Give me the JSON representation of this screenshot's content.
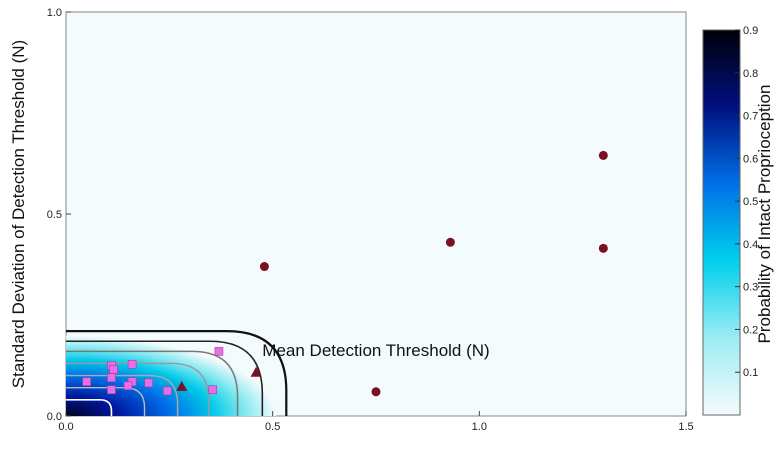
{
  "chart_data": {
    "type": "scatter",
    "xlabel": "Mean Detection Threshold (N)",
    "ylabel": "Standard Deviation of Detection Threshold (N)",
    "xlim": [
      0,
      1.5
    ],
    "ylim": [
      0,
      1.0
    ],
    "x_ticks": [
      "0.0",
      "0.5",
      "1.0",
      "1.5"
    ],
    "y_ticks": [
      "0.0",
      "0.5",
      "1.0"
    ],
    "background": "probability heatmap with contour lines",
    "colorbar": {
      "label": "Probability of Intact Proprioception",
      "range": [
        0.0,
        0.9
      ],
      "ticks": [
        "0.1",
        "0.2",
        "0.3",
        "0.4",
        "0.5",
        "0.6",
        "0.7",
        "0.8",
        "0.9"
      ],
      "colors": [
        "#f4fbfc",
        "#00e0f0",
        "#0060e8",
        "#000010"
      ]
    },
    "contour_levels": [
      0.1,
      0.3,
      0.5,
      0.7,
      0.9
    ],
    "series": [
      {
        "marker": "circle",
        "color": "#7a1020",
        "points": [
          [
            0.48,
            0.37
          ],
          [
            0.75,
            0.06
          ],
          [
            0.93,
            0.43
          ],
          [
            1.3,
            0.645
          ],
          [
            1.3,
            0.415
          ]
        ]
      },
      {
        "marker": "triangle",
        "color": "#7a1020",
        "points": [
          [
            0.28,
            0.072
          ],
          [
            0.46,
            0.107
          ]
        ]
      },
      {
        "marker": "square",
        "color": "#e86ee8",
        "points": [
          [
            0.05,
            0.085
          ],
          [
            0.11,
            0.125
          ],
          [
            0.115,
            0.115
          ],
          [
            0.16,
            0.128
          ],
          [
            0.11,
            0.095
          ],
          [
            0.16,
            0.085
          ],
          [
            0.2,
            0.082
          ],
          [
            0.15,
            0.075
          ],
          [
            0.11,
            0.065
          ],
          [
            0.245,
            0.062
          ],
          [
            0.355,
            0.065
          ],
          [
            0.37,
            0.16
          ]
        ]
      }
    ]
  }
}
